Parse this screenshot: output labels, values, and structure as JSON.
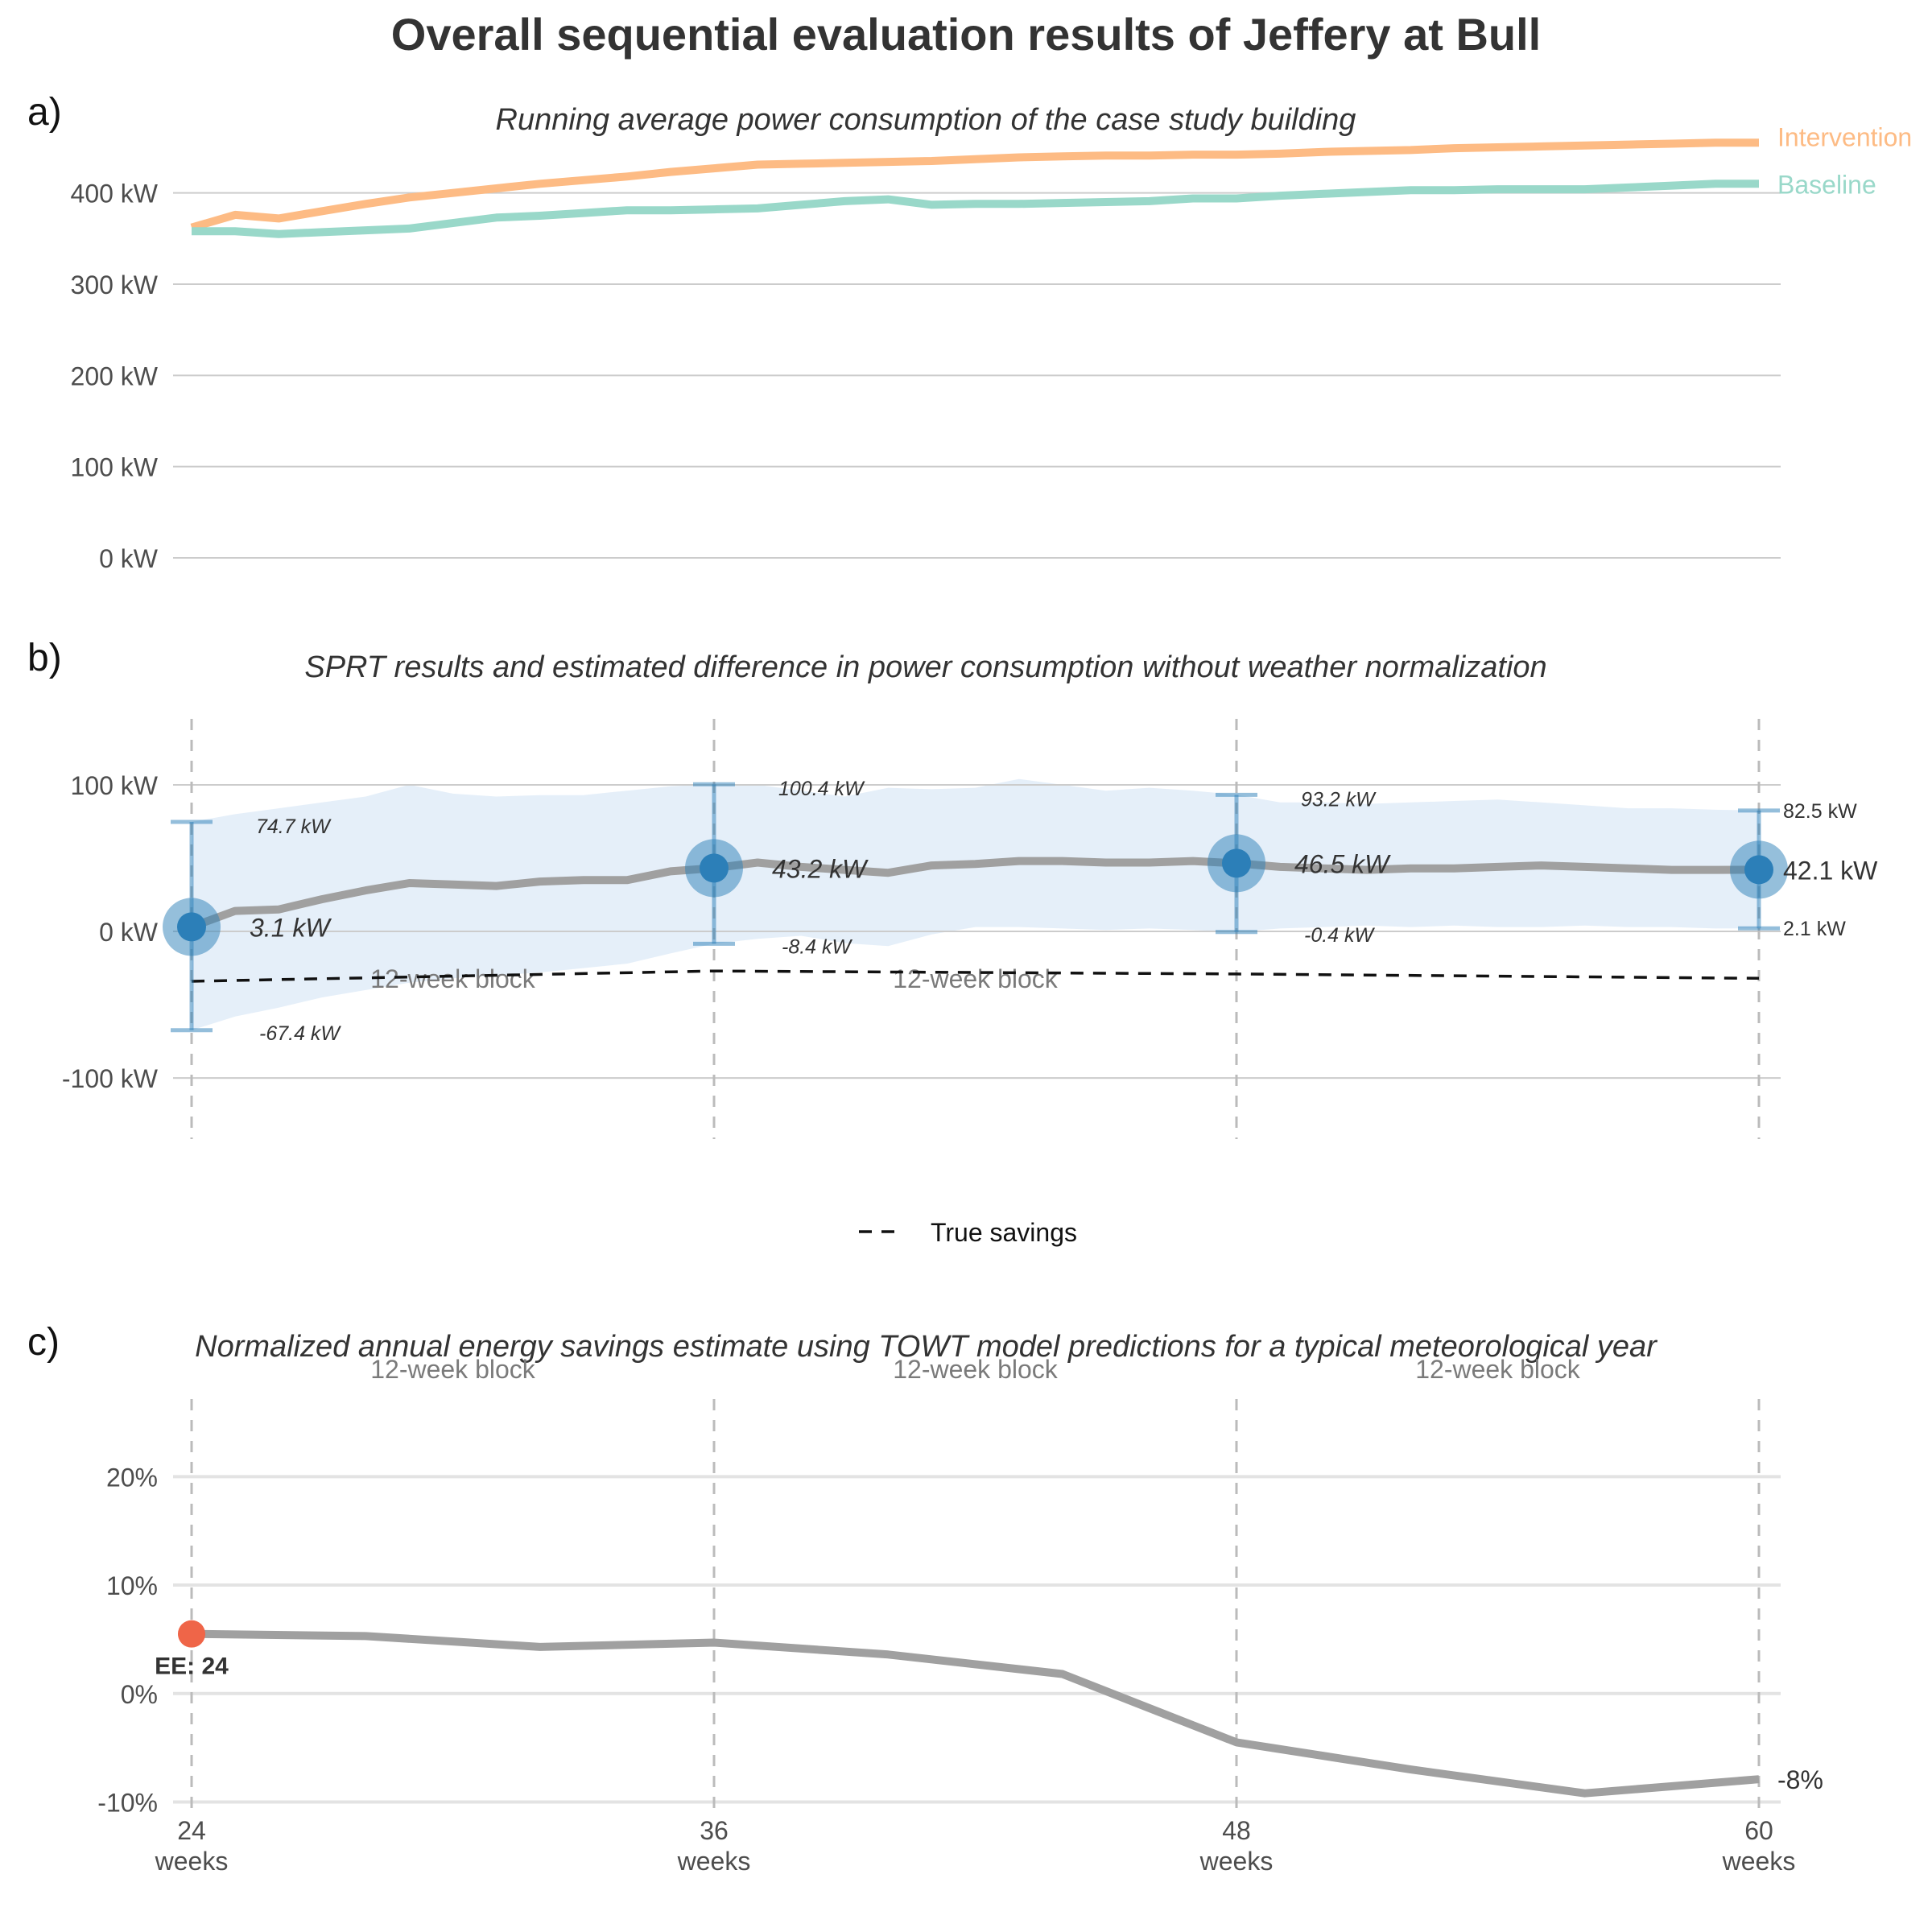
{
  "title": "Overall sequential evaluation results of Jeffery at Bull",
  "panels": {
    "a": {
      "label": "a)",
      "subtitle": "Running average power consumption of the case study building"
    },
    "b": {
      "label": "b)",
      "subtitle": "SPRT results and estimated difference in power consumption without weather normalization"
    },
    "c": {
      "label": "c)",
      "subtitle": "Normalized annual energy savings estimate using TOWT model predictions for a typical meteorological year"
    }
  },
  "colors": {
    "intervention": "#fdbb84",
    "baseline": "#99d8c9",
    "estimate_line": "#a0a0a0",
    "point": "#2c7fb8",
    "ci_band": "#deebf7",
    "early_end": "#ef6548",
    "gridline": "#cccccc",
    "vline": "#bbbbbb"
  },
  "chart_data": [
    {
      "type": "line",
      "panel": "a",
      "title": "Running average power consumption of the case study building",
      "ylim": [
        0,
        450
      ],
      "yticks": [
        0,
        100,
        200,
        300,
        400
      ],
      "ytick_labels": [
        "0 kW",
        "100 kW",
        "200 kW",
        "300 kW",
        "400 kW"
      ],
      "x_range": [
        24,
        60
      ],
      "x": [
        24,
        25,
        26,
        27,
        28,
        29,
        30,
        31,
        32,
        33,
        34,
        35,
        36,
        37,
        38,
        39,
        40,
        41,
        42,
        43,
        44,
        45,
        46,
        47,
        48,
        49,
        50,
        51,
        52,
        53,
        54,
        55,
        56,
        57,
        58,
        59,
        60
      ],
      "series": [
        {
          "name": "Intervention",
          "values": [
            362,
            376,
            372,
            380,
            388,
            395,
            400,
            405,
            410,
            414,
            418,
            423,
            427,
            431,
            432,
            433,
            434,
            435,
            437,
            439,
            440,
            441,
            441,
            442,
            442,
            443,
            445,
            446,
            447,
            449,
            450,
            451,
            452,
            453,
            454,
            455,
            455
          ]
        },
        {
          "name": "Baseline",
          "values": [
            358,
            358,
            355,
            357,
            359,
            361,
            367,
            373,
            375,
            378,
            381,
            381,
            382,
            383,
            387,
            391,
            393,
            387,
            388,
            388,
            389,
            390,
            391,
            394,
            394,
            397,
            399,
            401,
            403,
            403,
            404,
            404,
            404,
            406,
            408,
            410,
            410
          ]
        }
      ]
    },
    {
      "type": "line",
      "panel": "b",
      "title": "SPRT results and estimated difference in power consumption without weather normalization",
      "ylim": [
        -140,
        145
      ],
      "yticks": [
        -100,
        0,
        100
      ],
      "ytick_labels": [
        "-100 kW",
        "0 kW",
        "100 kW"
      ],
      "x_range": [
        24,
        60
      ],
      "x": [
        24,
        25,
        26,
        27,
        28,
        29,
        30,
        31,
        32,
        33,
        34,
        35,
        36,
        37,
        38,
        39,
        40,
        41,
        42,
        43,
        44,
        45,
        46,
        47,
        48,
        49,
        50,
        51,
        52,
        53,
        54,
        55,
        56,
        57,
        58,
        59,
        60
      ],
      "series": [
        {
          "name": "estimate",
          "values": [
            3.1,
            14,
            15,
            22,
            28,
            33,
            32,
            31,
            34,
            35,
            35,
            41,
            43.2,
            47,
            44,
            42,
            40,
            45,
            46,
            48,
            48,
            47,
            47,
            48,
            46.5,
            44,
            43,
            42,
            43,
            43,
            44,
            45,
            44,
            43,
            42,
            42,
            42.1
          ]
        },
        {
          "name": "ci_upper",
          "values": [
            74.7,
            80,
            84,
            88,
            92,
            100,
            94,
            92,
            93,
            93,
            96,
            99,
            100.4,
            100,
            96,
            92,
            98,
            97,
            98,
            104,
            100,
            96,
            98,
            96,
            93.2,
            88,
            88,
            87,
            88,
            89,
            90,
            88,
            86,
            84,
            84,
            83,
            82.5
          ]
        },
        {
          "name": "ci_lower",
          "values": [
            -67.4,
            -58,
            -52,
            -45,
            -40,
            -35,
            -32,
            -30,
            -28,
            -25,
            -22,
            -15,
            -8.4,
            -5,
            -3,
            -8,
            -10,
            -2,
            3,
            3,
            2,
            1,
            2,
            1,
            -0.4,
            2,
            3,
            4,
            3,
            4,
            3,
            3,
            4,
            3,
            3,
            2,
            2.1
          ]
        },
        {
          "name": "True savings",
          "x": [
            24,
            36,
            48,
            60
          ],
          "values": [
            -34,
            -27,
            -29,
            -32
          ]
        }
      ],
      "sprt_points": [
        {
          "x": 24,
          "estimate": 3.1,
          "lower": -67.4,
          "upper": 74.7,
          "label": "3.1 kW",
          "lower_label": "-67.4 kW",
          "upper_label": "74.7 kW"
        },
        {
          "x": 36,
          "estimate": 43.2,
          "lower": -8.4,
          "upper": 100.4,
          "label": "43.2 kW",
          "lower_label": "-8.4 kW",
          "upper_label": "100.4 kW"
        },
        {
          "x": 48,
          "estimate": 46.5,
          "lower": -0.4,
          "upper": 93.2,
          "label": "46.5 kW",
          "lower_label": "-0.4 kW",
          "upper_label": "93.2 kW"
        },
        {
          "x": 60,
          "estimate": 42.1,
          "lower": 2.1,
          "upper": 82.5,
          "label": "42.1 kW",
          "lower_label": "2.1 kW",
          "upper_label": "82.5 kW"
        }
      ],
      "block_labels": [
        "12-week block",
        "12-week block"
      ],
      "legend": {
        "items": [
          "True savings"
        ],
        "position": "bottom"
      }
    },
    {
      "type": "line",
      "panel": "c",
      "title": "Normalized annual energy savings estimate using TOWT model predictions for a typical meteorological year",
      "ylim": [
        -11,
        27
      ],
      "yticks": [
        -10,
        0,
        10,
        20
      ],
      "ytick_labels": [
        "-10%",
        "0%",
        "10%",
        "20%"
      ],
      "x_range": [
        24,
        60
      ],
      "xticks": [
        24,
        36,
        48,
        60
      ],
      "xtick_labels": [
        "24\nweeks",
        "36\nweeks",
        "48\nweeks",
        "60\nweeks"
      ],
      "x": [
        24,
        28,
        32,
        36,
        40,
        44,
        48,
        52,
        56,
        60
      ],
      "values": [
        5.5,
        5.3,
        4.3,
        4.7,
        3.6,
        1.8,
        -4.5,
        -7.0,
        -9.2,
        -7.9
      ],
      "end_label": "-8%",
      "early_end": {
        "x": 24,
        "y": 5.5,
        "label": "EE: 24"
      },
      "block_labels": [
        "12-week block",
        "12-week block",
        "12-week block"
      ]
    }
  ]
}
